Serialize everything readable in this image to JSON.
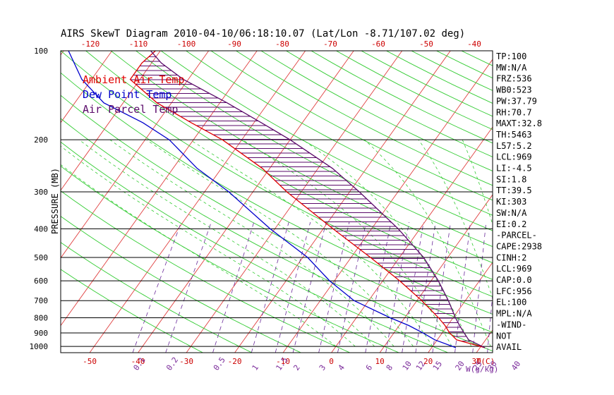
{
  "title": "AIRS SkewT Diagram 2010-04-10/06:18:10.07 (Lat/Lon -8.71/107.02 deg)",
  "legend": [
    {
      "label": "Ambient Air Temp",
      "color": "#e00000"
    },
    {
      "label": "Dew Point Temp",
      "color": "#0000cc"
    },
    {
      "label": "Air Parcel Temp",
      "color": "#5a0a6a"
    }
  ],
  "colors": {
    "isotherm": "#e04040",
    "dry_adiabat": "#33cc33",
    "moist_adiabat": "#33cc33",
    "mixing_ratio": "#6a2a9a",
    "isobar": "#000000",
    "axis_text": "#cc0000",
    "mixing_text": "#7a2a9a",
    "cape_hatch": "#5a0a6a"
  },
  "indices": [
    "TP:100",
    "MW:N/A",
    "FRZ:536",
    "WB0:523",
    "PW:37.79",
    "RH:70.7",
    "MAXT:32.8",
    "TH:5463",
    "L57:5.2",
    "LCL:969",
    "LI:-4.5",
    "SI:1.8",
    "TT:39.5",
    "KI:303",
    "SW:N/A",
    "EI:0.2",
    "-PARCEL-",
    "CAPE:2938",
    "CINH:2",
    "LCL:969",
    "CAP:0.0",
    "LFC:956",
    "EL:100",
    "MPL:N/A",
    "-WIND-",
    "NOT",
    "AVAIL"
  ],
  "chart_data": {
    "type": "line",
    "title": "AIRS SkewT Diagram 2010-04-10/06:18:10.07 (Lat/Lon -8.71/107.02 deg)",
    "ylabel": "PRESSURE (MB)",
    "xlabel": "T(C)",
    "mixing_ratio_unit": "W(g/kg)",
    "pressure_ticks": [
      100,
      200,
      300,
      400,
      500,
      600,
      700,
      800,
      900,
      1000
    ],
    "temp_ticks_bottom": [
      -50,
      -40,
      -30,
      -20,
      -10,
      0,
      10,
      20,
      30
    ],
    "temp_ticks_top": [
      -120,
      -110,
      -100,
      -90,
      -80,
      -70,
      -60,
      -50,
      -40
    ],
    "mixing_ratio_labels": [
      "0.1",
      "0.2",
      "0.5",
      "1",
      "1.5",
      "2",
      "3",
      "4",
      "6",
      "8",
      "10",
      "12",
      "15",
      "20",
      "25",
      "30",
      "40"
    ],
    "mixing_ratio_values": [
      0.1,
      0.2,
      0.5,
      1,
      1.5,
      2,
      3,
      4,
      6,
      8,
      10,
      12,
      15,
      20,
      25,
      30,
      40
    ],
    "ylim": [
      1050,
      100
    ],
    "series": [
      {
        "name": "Ambient Air Temp",
        "p": [
          1010,
          950,
          900,
          850,
          800,
          700,
          600,
          500,
          400,
          300,
          250,
          200,
          175,
          150,
          125,
          110,
          100
        ],
        "t": [
          31,
          24,
          21.5,
          19.5,
          17,
          11,
          3.5,
          -6,
          -18,
          -33,
          -41.5,
          -54,
          -63,
          -73,
          -82,
          -82,
          -81
        ]
      },
      {
        "name": "Dew Point Temp",
        "p": [
          1010,
          950,
          900,
          850,
          800,
          700,
          600,
          500,
          400,
          300,
          250,
          200,
          175,
          150,
          125,
          100
        ],
        "t": [
          25,
          19.5,
          16,
          12,
          7,
          -3,
          -11,
          -19,
          -31,
          -45,
          -55,
          -65,
          -73,
          -84,
          -92,
          -99
        ]
      },
      {
        "name": "Air Parcel Temp",
        "p": [
          1010,
          950,
          900,
          850,
          800,
          700,
          600,
          500,
          400,
          300,
          250,
          200,
          175,
          150,
          125,
          110,
          100
        ],
        "t": [
          31,
          26.5,
          24.5,
          22.5,
          20.5,
          16.5,
          11.5,
          5,
          -4.5,
          -18,
          -27,
          -40,
          -48.5,
          -58.5,
          -71,
          -78,
          -82
        ]
      }
    ]
  }
}
